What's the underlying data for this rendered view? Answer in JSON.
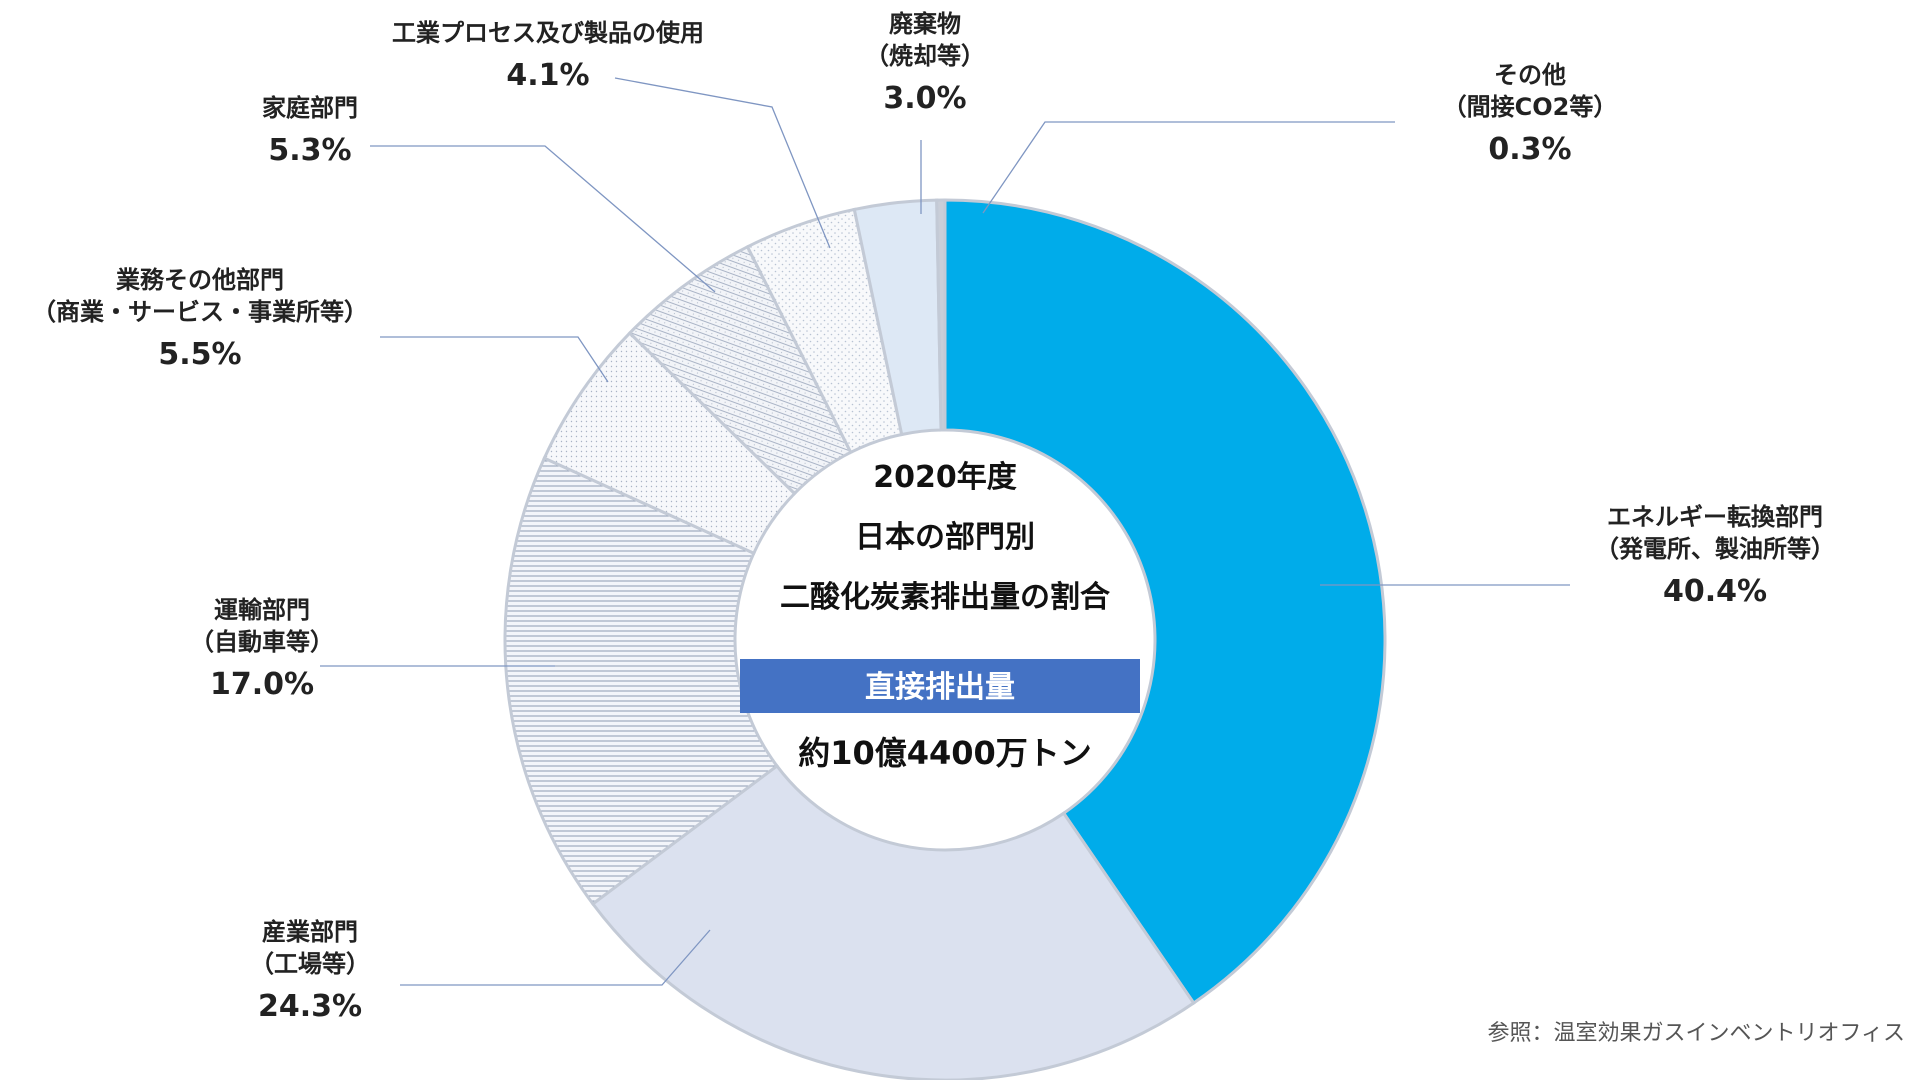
{
  "chart_data": {
    "type": "pie",
    "center_title": [
      "2020年度",
      "日本の部門別",
      "二酸化炭素排出量の割合"
    ],
    "center_band": "直接排出量",
    "center_total": "約10億4400万トン",
    "source": "参照：温室効果ガスインベントリオフィス",
    "slices": [
      {
        "name_lines": [
          "エネルギー転換部門",
          "（発電所、製油所等）"
        ],
        "value": 40.4,
        "value_label": "40.4%",
        "color": "#00acea",
        "pattern": "solid"
      },
      {
        "name_lines": [
          "産業部門",
          "（工場等）"
        ],
        "value": 24.3,
        "value_label": "24.3%",
        "color": "#dbe1ef",
        "pattern": "solid"
      },
      {
        "name_lines": [
          "運輸部門",
          "（自動車等）"
        ],
        "value": 17.0,
        "value_label": "17.0%",
        "color": "#eef1f8",
        "pattern": "hstripes"
      },
      {
        "name_lines": [
          "業務その他部門",
          "（商業・サービス・事業所等）"
        ],
        "value": 5.5,
        "value_label": "5.5%",
        "color": "#f5f6fa",
        "pattern": "dots"
      },
      {
        "name_lines": [
          "家庭部門"
        ],
        "value": 5.3,
        "value_label": "5.3%",
        "color": "#eef1f6",
        "pattern": "diag"
      },
      {
        "name_lines": [
          "工業プロセス及び製品の使用"
        ],
        "value": 4.1,
        "value_label": "4.1%",
        "color": "#f6f8fa",
        "pattern": "dots2"
      },
      {
        "name_lines": [
          "廃棄物",
          "（焼却等）"
        ],
        "value": 3.0,
        "value_label": "3.0%",
        "color": "#dde8f5",
        "pattern": "solid"
      },
      {
        "name_lines": [
          "その他",
          "（間接CO2等）"
        ],
        "value": 0.3,
        "value_label": "0.3%",
        "color": "#c9ced8",
        "pattern": "solid"
      }
    ]
  }
}
